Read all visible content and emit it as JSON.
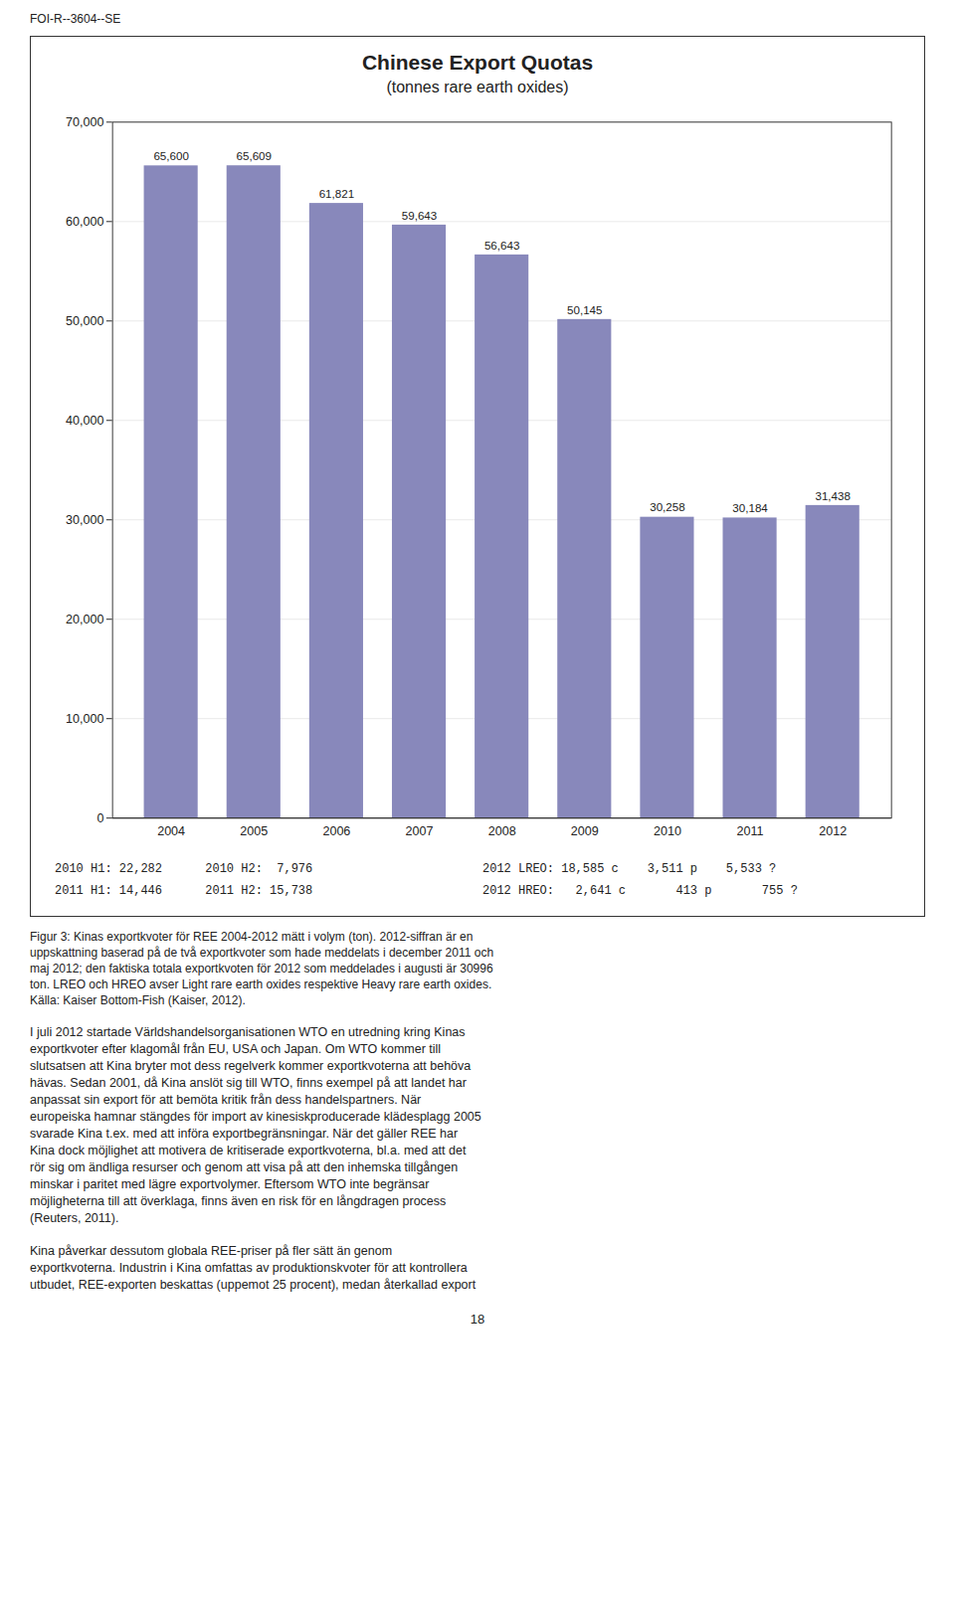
{
  "chart_data": {
    "type": "bar",
    "title": "Chinese Export Quotas",
    "subtitle": "(tonnes rare earth oxides)",
    "categories": [
      "2004",
      "2005",
      "2006",
      "2007",
      "2008",
      "2009",
      "2010",
      "2011",
      "2012"
    ],
    "values": [
      65600,
      65609,
      61821,
      59643,
      56643,
      50145,
      30258,
      30184,
      31438
    ],
    "value_labels": [
      "65,600",
      "65,609",
      "61,821",
      "59,643",
      "56,643",
      "50,145",
      "30,258",
      "30,184",
      "31,438"
    ],
    "data_labels": true,
    "color": "#8888BB",
    "ylim": [
      0,
      70000
    ],
    "yticks": [
      0,
      {
        "value": 10000,
        "label": "10,000"
      },
      {
        "value": 20000,
        "label": "20,000"
      },
      {
        "value": 30000,
        "label": "30,000"
      },
      {
        "value": 40000,
        "label": "40,000"
      },
      {
        "value": 50000,
        "label": "50,000"
      },
      {
        "value": 60000,
        "label": "60,000"
      },
      {
        "value": 70000,
        "label": "70,000"
      }
    ],
    "grid": true,
    "annotations": [
      "FOI-R--3604--SE",
      "2010 H1: 22,282      2010 H2:  7,976",
      "2011 H1: 14,446      2011 H2: 15,738",
      "2012 LREO: 18,585 c    3,511 p    5,533 ?",
      "2012 HREO:   2,641 c       413 p       755 ?",
      "Figur 3: Kinas exportkvoter för REE 2004-2012 mätt i volym (ton). 2012-siffran är en\nuppskattning baserad på de två exportkvoter som hade meddelats i december 2011 och\nmaj 2012; den faktiska totala exportkvoten för 2012 som meddelades i augusti är 30996\nton. LREO och HREO avser Light rare earth oxides respektive Heavy rare earth oxides.\nKälla: Kaiser Bottom-Fish (Kaiser, 2012).",
      "I juli 2012 startade Världshandelsorganisationen WTO en utredning kring Kinas\nexportkvoter efter klagomål från EU, USA och Japan. Om WTO kommer till\nslutsatsen att Kina bryter mot dess regelverk kommer exportkvoterna att behöva\nhävas. Sedan 2001, då Kina anslöt sig till WTO, finns exempel på att landet har\nanpassat sin export för att bemöta kritik från dess handelspartners. När\neuropeiska hamnar stängdes för import av kinesiskproducerade klädesplagg 2005\nsvarade Kina t.ex. med att införa exportbegränsningar. När det gäller REE har\nKina dock möjlighet att motivera de kritiserade exportkvoterna, bl.a. med att det\nrör sig om ändliga resurser och genom att visa på att den inhemska tillgången\nminskar i paritet med lägre exportvolymer. Eftersom WTO inte begränsar\nmöjligheterna till att överklaga, finns även en risk för en långdragen process\n(Reuters, 2011).",
      "Kina påverkar dessutom globala REE-priser på fler sätt än genom\nexportkvoterna. Industrin i Kina omfattas av produktionskvoter för att kontrollera\nutbudet, REE-exporten beskattas (uppemot 25 procent), medan återkallad export",
      "18"
    ]
  }
}
